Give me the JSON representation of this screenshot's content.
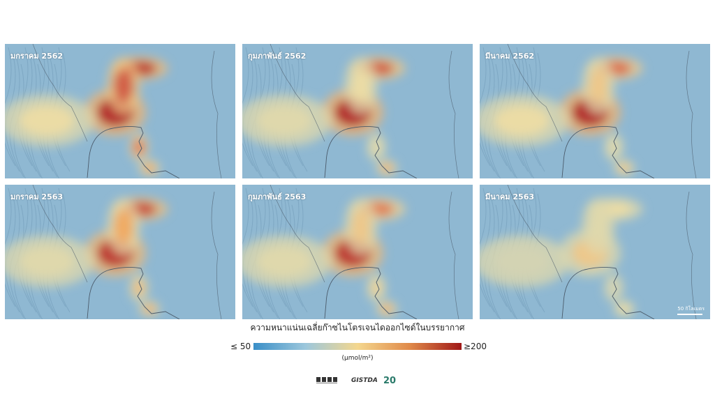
{
  "panels": [
    {
      "label": "มกราคม 2562",
      "hotspots": [
        0.95,
        1.0,
        0.85,
        0.75,
        0.6,
        0.35
      ]
    },
    {
      "label": "กุมภาพันธ์ 2562",
      "hotspots": [
        0.85,
        1.0,
        0.35,
        0.3,
        0.55,
        0.3
      ]
    },
    {
      "label": "มีนาคม 2562",
      "hotspots": [
        0.8,
        1.0,
        0.45,
        0.3,
        0.45,
        0.35
      ]
    },
    {
      "label": "มกราคม 2563",
      "hotspots": [
        0.9,
        0.95,
        0.6,
        0.5,
        0.55,
        0.3
      ]
    },
    {
      "label": "กุมภาพันธ์ 2563",
      "hotspots": [
        0.75,
        0.95,
        0.45,
        0.4,
        0.55,
        0.3
      ]
    },
    {
      "label": "มีนาคม 2563",
      "hotspots": [
        0.35,
        0.45,
        0.3,
        0.25,
        0.35,
        0.25
      ]
    }
  ],
  "scale_label": "50 กิโลเมตร",
  "legend": {
    "title": "ความหนาแน่นเฉลี่ยก๊าซไนโตรเจนไดออกไซด์ในบรรยากาศ",
    "min_label": "≤ 50",
    "max_label": "≥200",
    "unit": "(µmol/m²)",
    "colors": [
      "#3a8fc8",
      "#9cc7dc",
      "#f4d78e",
      "#e08a4a",
      "#a01818"
    ]
  },
  "logos": [
    {
      "name": "ministry-logo"
    },
    {
      "text": "GISTDA"
    },
    {
      "text": "20"
    }
  ]
}
